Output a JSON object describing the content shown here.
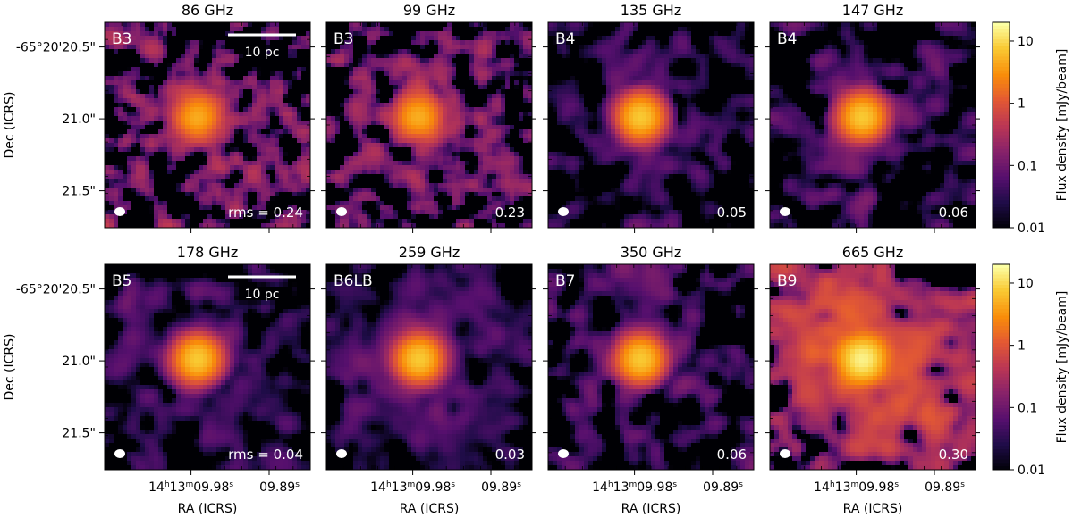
{
  "chart_data": {
    "type": "heatmap",
    "colormap": "inferno",
    "scale": "log",
    "colorbar": {
      "label": "Flux density [mJy/beam]",
      "range": [
        0.01,
        20
      ],
      "tick_values": [
        10,
        1,
        0.1,
        0.01
      ],
      "tick_labels": [
        "10",
        "1",
        "0.1",
        "0.01"
      ]
    },
    "axes": {
      "xlabel": "RA (ICRS)",
      "ylabel": "Dec (ICRS)",
      "x_tick_labels": [
        "14h13m09.98s",
        "09.89s"
      ],
      "y_tick_labels": [
        "-65°20'20.5\"",
        "21.0\"",
        "21.5\""
      ]
    },
    "scale_bar_label": "10 pc",
    "rows": [
      {
        "panels": [
          {
            "freq": "86 GHz",
            "band": "B3",
            "rms": "rms = 0.24",
            "peak_mjy": 5,
            "extended_mjy": 0.3,
            "noise_level_mjy": 0.24,
            "scale_bar": true
          },
          {
            "freq": "99 GHz",
            "band": "B3",
            "rms": "0.23",
            "peak_mjy": 5,
            "extended_mjy": 0.3,
            "noise_level_mjy": 0.23,
            "scale_bar": false
          },
          {
            "freq": "135 GHz",
            "band": "B4",
            "rms": "0.05",
            "peak_mjy": 8,
            "extended_mjy": 0.12,
            "noise_level_mjy": 0.05,
            "scale_bar": false
          },
          {
            "freq": "147 GHz",
            "band": "B4",
            "rms": "0.06",
            "peak_mjy": 8,
            "extended_mjy": 0.12,
            "noise_level_mjy": 0.06,
            "scale_bar": false
          }
        ]
      },
      {
        "panels": [
          {
            "freq": "178 GHz",
            "band": "B5",
            "rms": "rms = 0.04",
            "peak_mjy": 8,
            "extended_mjy": 0.12,
            "noise_level_mjy": 0.04,
            "scale_bar": true
          },
          {
            "freq": "259 GHz",
            "band": "B6LB",
            "rms": "0.03",
            "peak_mjy": 8,
            "extended_mjy": 0.2,
            "noise_level_mjy": 0.03,
            "scale_bar": false
          },
          {
            "freq": "350 GHz",
            "band": "B7",
            "rms": "0.06",
            "peak_mjy": 8,
            "extended_mjy": 0.15,
            "noise_level_mjy": 0.06,
            "scale_bar": false
          },
          {
            "freq": "665 GHz",
            "band": "B9",
            "rms": "0.30",
            "peak_mjy": 15,
            "extended_mjy": 2.0,
            "noise_level_mjy": 0.3,
            "scale_bar": false
          }
        ]
      }
    ]
  }
}
